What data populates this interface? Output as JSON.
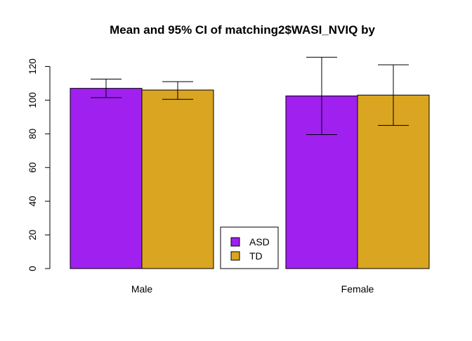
{
  "chart_data": {
    "type": "bar",
    "title": "Mean and 95% CI of matching2$WASI_NVIQ by",
    "xlabel": "",
    "ylabel": "",
    "categories": [
      "Male",
      "Female"
    ],
    "series": [
      {
        "name": "ASD",
        "color": "#a020f0",
        "values": [
          107,
          102.5
        ],
        "ci_lower": [
          101.5,
          79.5
        ],
        "ci_upper": [
          112.5,
          125.5
        ]
      },
      {
        "name": "TD",
        "color": "#daa520",
        "values": [
          106,
          103
        ],
        "ci_lower": [
          100.5,
          85
        ],
        "ci_upper": [
          111,
          121
        ]
      }
    ],
    "ylim": [
      0,
      120
    ],
    "yticks": [
      0,
      20,
      40,
      60,
      80,
      100,
      120
    ],
    "grid": false,
    "legend_position": "bottom-center",
    "bar_outline_color": "#000000"
  }
}
